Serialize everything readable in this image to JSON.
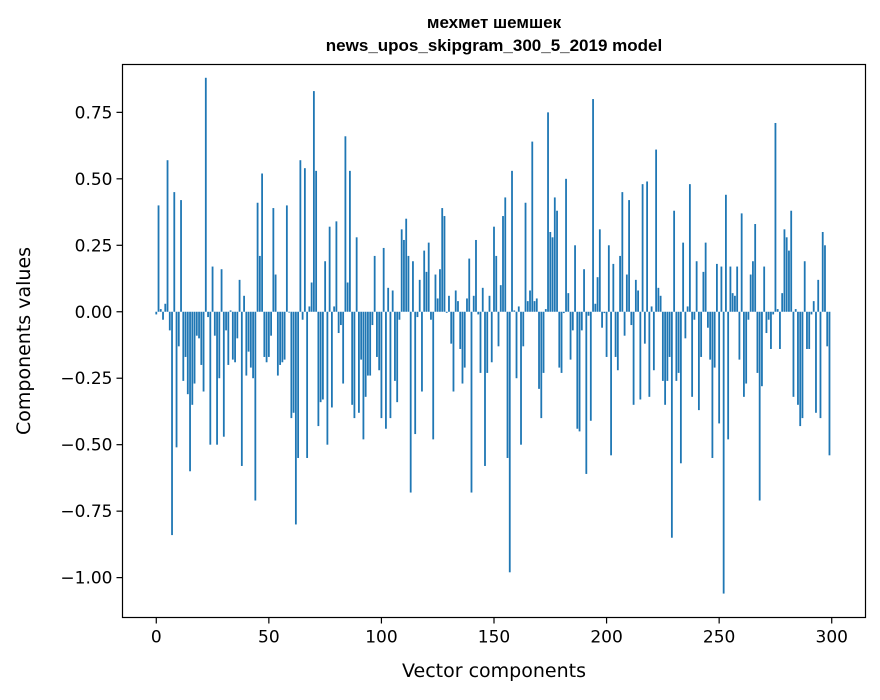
{
  "chart_data": {
    "type": "bar",
    "title": "мехмет шемшек",
    "subtitle": "news_upos_skipgram_300_5_2019 model",
    "xlabel": "Vector components",
    "ylabel": "Components values",
    "xlim": [
      -15,
      315
    ],
    "ylim": [
      -1.15,
      0.93
    ],
    "xticks": [
      0,
      50,
      100,
      150,
      200,
      250,
      300
    ],
    "xtick_labels": [
      "0",
      "50",
      "100",
      "150",
      "200",
      "250",
      "300"
    ],
    "yticks": [
      -1.0,
      -0.75,
      -0.5,
      -0.25,
      0.0,
      0.25,
      0.5,
      0.75
    ],
    "ytick_labels": [
      "−1.00",
      "−0.75",
      "−0.50",
      "−0.25",
      "0.00",
      "0.25",
      "0.50",
      "0.75"
    ],
    "grid": false,
    "bar_color": "#1f77b4",
    "values": [
      -0.01,
      0.4,
      0.01,
      -0.03,
      0.03,
      0.57,
      -0.07,
      -0.84,
      0.45,
      -0.51,
      -0.13,
      0.42,
      -0.26,
      -0.17,
      -0.31,
      -0.6,
      -0.35,
      -0.27,
      -0.09,
      -0.1,
      -0.2,
      -0.3,
      0.88,
      -0.02,
      -0.5,
      0.17,
      -0.09,
      -0.5,
      -0.25,
      0.16,
      -0.47,
      -0.07,
      -0.2,
      0.005,
      -0.18,
      -0.19,
      -0.1,
      0.12,
      -0.58,
      0.06,
      -0.24,
      -0.15,
      -0.21,
      -0.25,
      -0.71,
      0.41,
      0.21,
      0.52,
      -0.17,
      -0.19,
      -0.17,
      -0.09,
      0.39,
      0.14,
      -0.24,
      -0.2,
      -0.19,
      -0.18,
      0.4,
      -0.003,
      -0.4,
      -0.38,
      -0.8,
      -0.55,
      0.57,
      -0.03,
      0.54,
      -0.55,
      0.02,
      0.11,
      0.83,
      0.53,
      -0.43,
      -0.34,
      -0.33,
      0.19,
      -0.5,
      0.32,
      -0.36,
      0.02,
      0.34,
      -0.08,
      -0.05,
      -0.27,
      0.66,
      0.11,
      0.53,
      -0.35,
      -0.4,
      0.28,
      -0.38,
      -0.18,
      -0.48,
      -0.32,
      -0.24,
      -0.24,
      -0.05,
      0.21,
      -0.17,
      -0.22,
      -0.4,
      0.24,
      -0.44,
      0.09,
      -0.4,
      0.08,
      -0.26,
      -0.34,
      -0.03,
      0.31,
      0.27,
      0.35,
      0.21,
      -0.68,
      0.19,
      -0.46,
      -0.02,
      0.12,
      -0.3,
      0.23,
      0.15,
      0.26,
      -0.03,
      -0.48,
      0.14,
      0.05,
      0.16,
      0.39,
      0.36,
      -0.004,
      0.06,
      -0.12,
      -0.3,
      0.08,
      0.04,
      -0.14,
      -0.27,
      -0.21,
      0.05,
      0.2,
      -0.68,
      0.06,
      0.27,
      -0.01,
      -0.23,
      0.09,
      -0.58,
      -0.23,
      0.06,
      -0.19,
      0.32,
      0.21,
      -0.13,
      0.1,
      0.36,
      0.43,
      -0.55,
      -0.98,
      0.53,
      0.005,
      -0.25,
      0.02,
      -0.5,
      -0.13,
      0.41,
      0.04,
      0.08,
      0.64,
      0.04,
      0.05,
      -0.29,
      -0.4,
      -0.23,
      0.01,
      0.75,
      0.3,
      0.28,
      0.43,
      0.38,
      -0.21,
      -0.23,
      -0.005,
      0.5,
      0.07,
      -0.18,
      -0.07,
      0.25,
      -0.44,
      -0.45,
      -0.07,
      0.16,
      -0.61,
      -0.015,
      -0.41,
      0.8,
      0.03,
      0.13,
      0.31,
      -0.06,
      -0.005,
      -0.17,
      0.25,
      -0.54,
      0.18,
      -0.17,
      -0.22,
      0.21,
      0.45,
      -0.09,
      0.14,
      0.42,
      -0.05,
      -0.35,
      0.12,
      0.08,
      -0.33,
      0.48,
      -0.12,
      0.49,
      -0.32,
      0.02,
      -0.22,
      0.61,
      0.09,
      0.06,
      -0.26,
      -0.35,
      -0.26,
      -0.17,
      -0.85,
      0.38,
      -0.26,
      -0.23,
      -0.57,
      0.26,
      -0.1,
      0.02,
      0.48,
      -0.32,
      -0.03,
      0.19,
      -0.37,
      -0.17,
      0.15,
      0.26,
      -0.06,
      -0.18,
      -0.55,
      -0.21,
      0.18,
      -0.42,
      0.17,
      -1.06,
      0.44,
      -0.48,
      0.17,
      0.07,
      0.06,
      0.17,
      -0.18,
      0.37,
      -0.32,
      -0.27,
      -0.03,
      0.14,
      0.19,
      0.33,
      -0.23,
      -0.71,
      -0.28,
      0.17,
      -0.08,
      -0.03,
      -0.14,
      -0.01,
      0.71,
      0.01,
      -0.14,
      0.07,
      0.31,
      0.28,
      0.23,
      0.38,
      -0.32,
      0.01,
      -0.35,
      -0.43,
      -0.4,
      0.19,
      -0.14,
      -0.14,
      -0.01,
      0.04,
      -0.38,
      0.12,
      -0.4,
      0.3,
      0.25,
      -0.13,
      -0.54
    ]
  }
}
